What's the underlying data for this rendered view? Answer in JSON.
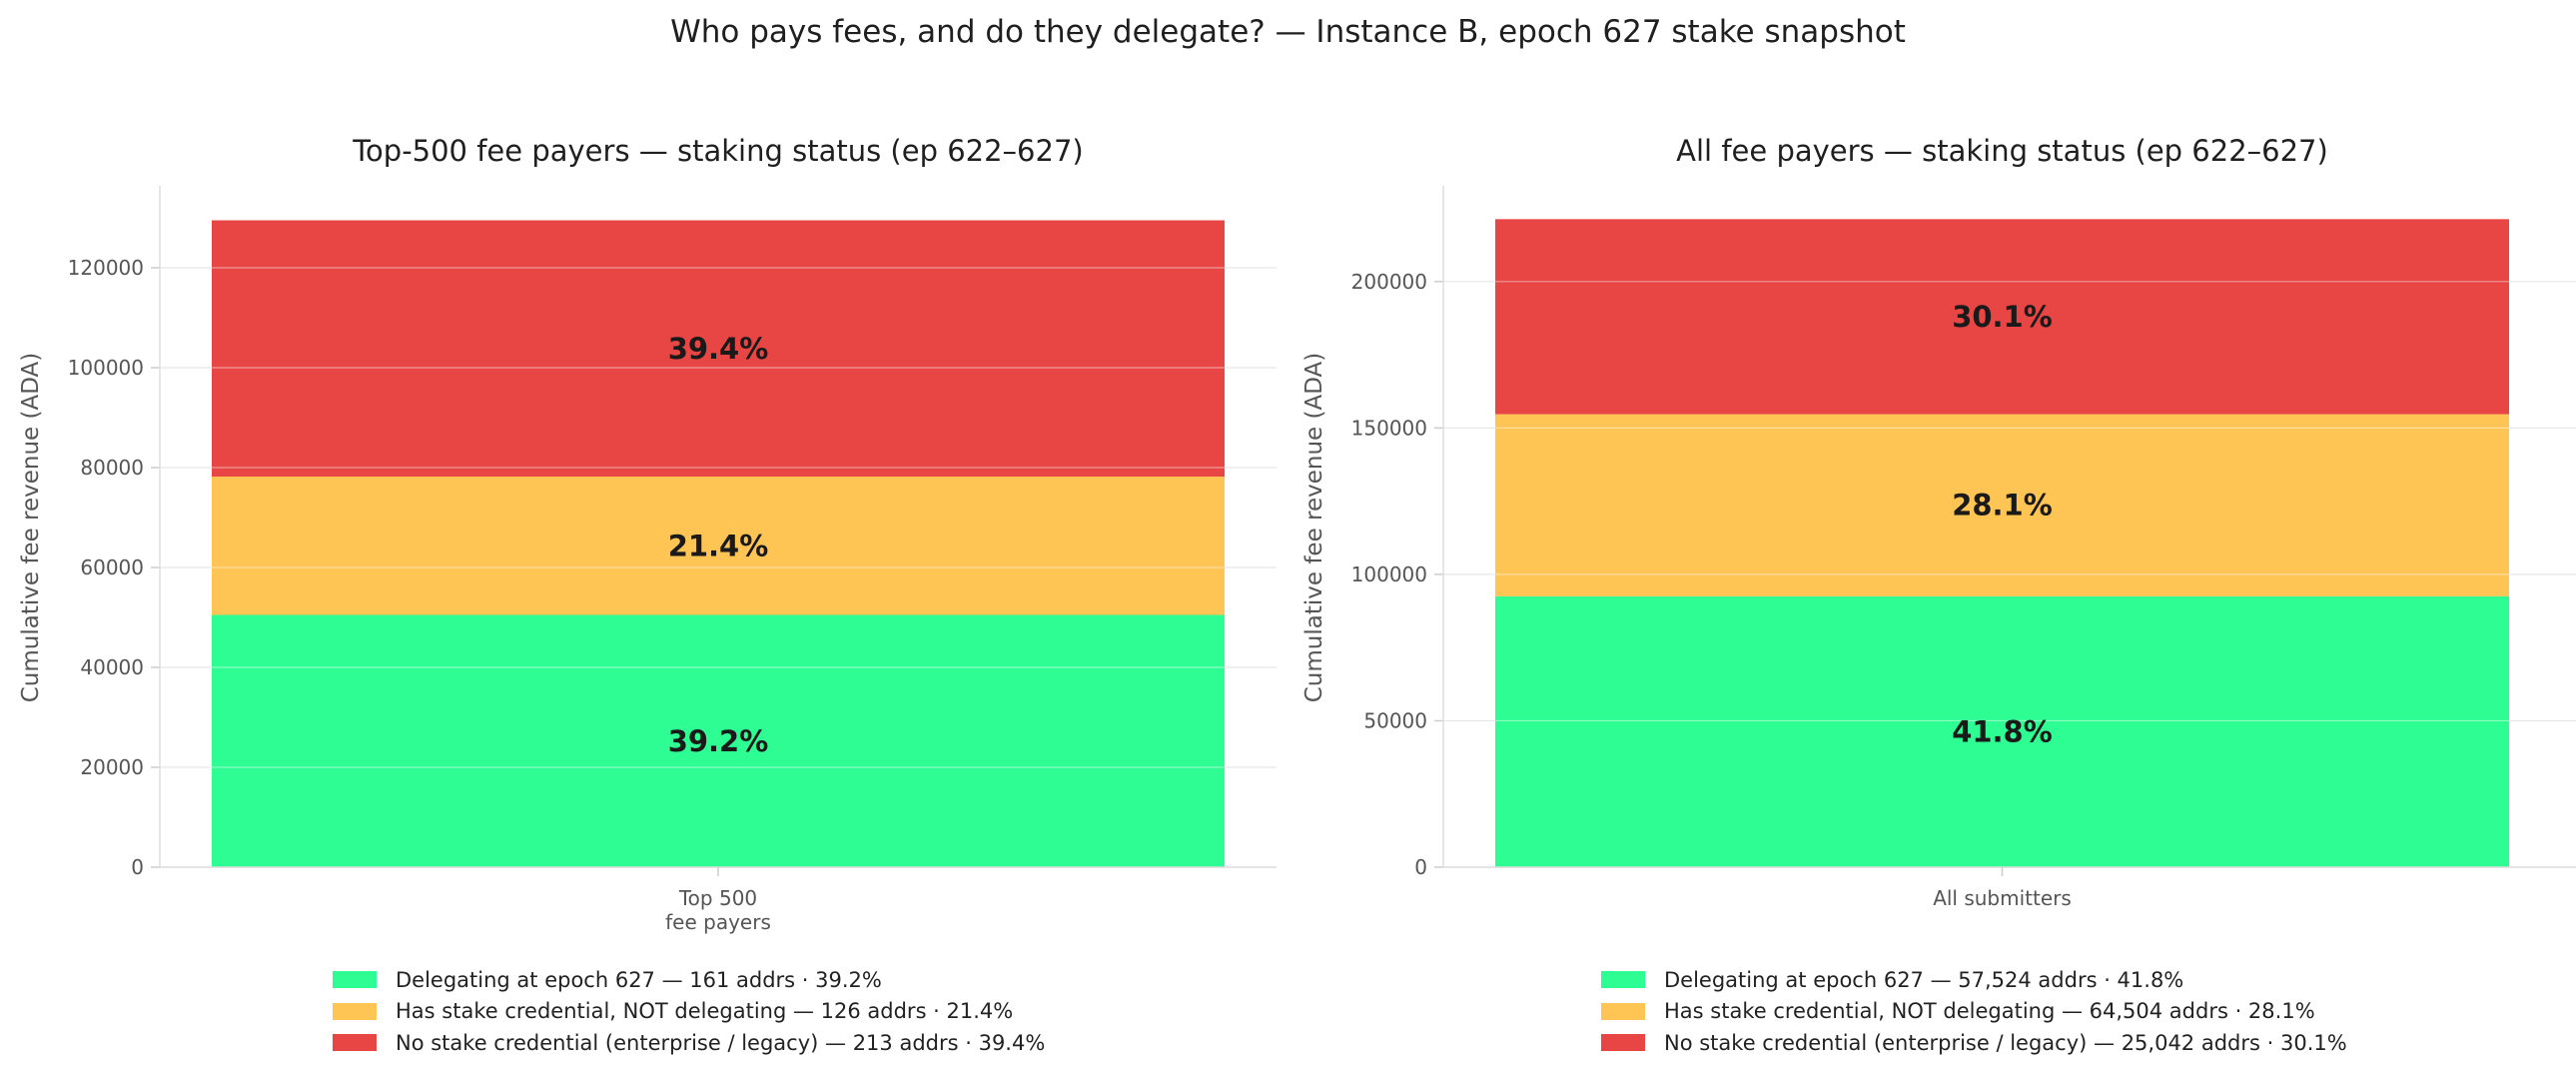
{
  "suptitle": "Who pays fees, and do they delegate? — Instance B, epoch 627 stake snapshot",
  "colors": {
    "delegating": "#2efd94",
    "not_delegating": "#fec454",
    "no_credential": "#e84545",
    "label_text": "#1a1a1a",
    "tick_text": "#555555",
    "grid": "#e6e6e6"
  },
  "legends": [
    {
      "items": [
        {
          "label": "Delegating at epoch 627  —  161 addrs · 39.2%",
          "color": "#2efd94"
        },
        {
          "label": "Has stake credential, NOT delegating  —  126 addrs · 21.4%",
          "color": "#fec454"
        },
        {
          "label": "No stake credential (enterprise / legacy)  —  213 addrs · 39.4%",
          "color": "#e84545"
        }
      ]
    },
    {
      "items": [
        {
          "label": "Delegating at epoch 627  —  57,524 addrs · 41.8%",
          "color": "#2efd94"
        },
        {
          "label": "Has stake credential, NOT delegating  —  64,504 addrs · 28.1%",
          "color": "#fec454"
        },
        {
          "label": "No stake credential (enterprise / legacy)  —  25,042 addrs · 30.1%",
          "color": "#e84545"
        }
      ]
    }
  ],
  "chart_data": [
    {
      "type": "bar",
      "stacked": true,
      "title": "Top-500 fee payers — staking status (ep 622–627)",
      "xlabel": "",
      "ylabel": "Cumulative fee revenue (ADA)",
      "categories": [
        "Top 500\nfee payers"
      ],
      "ylim": [
        0,
        136000
      ],
      "yticks": [
        0,
        20000,
        40000,
        60000,
        80000,
        100000,
        120000
      ],
      "grid": true,
      "legend": "bottom",
      "series": [
        {
          "name": "Delegating at epoch 627",
          "values": [
            50500
          ],
          "label": "39.2%",
          "color": "#2efd94"
        },
        {
          "name": "Has stake credential, NOT delegating",
          "values": [
            27700
          ],
          "label": "21.4%",
          "color": "#fec454"
        },
        {
          "name": "No stake credential (enterprise / legacy)",
          "values": [
            51300
          ],
          "label": "39.4%",
          "color": "#e84545"
        }
      ]
    },
    {
      "type": "bar",
      "stacked": true,
      "title": "All fee payers — staking status (ep 622–627)",
      "xlabel": "",
      "ylabel": "Cumulative fee revenue (ADA)",
      "categories": [
        "All submitters"
      ],
      "ylim": [
        0,
        232000
      ],
      "yticks": [
        0,
        50000,
        100000,
        150000,
        200000
      ],
      "grid": true,
      "legend": "bottom",
      "series": [
        {
          "name": "Delegating at epoch 627",
          "values": [
            92500
          ],
          "label": "41.8%",
          "color": "#2efd94"
        },
        {
          "name": "Has stake credential, NOT delegating",
          "values": [
            62200
          ],
          "label": "28.1%",
          "color": "#fec454"
        },
        {
          "name": "No stake credential (enterprise / legacy)",
          "values": [
            66600
          ],
          "label": "30.1%",
          "color": "#e84545"
        }
      ]
    }
  ]
}
